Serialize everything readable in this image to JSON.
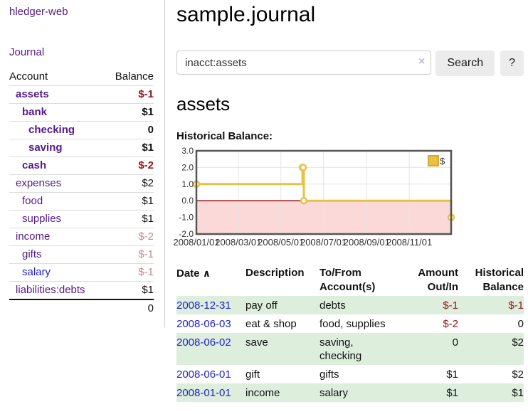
{
  "app": {
    "brand": "hledger-web",
    "nav": {
      "journal": "Journal"
    }
  },
  "sidebar": {
    "header": {
      "account": "Account",
      "balance": "Balance"
    },
    "accounts": [
      {
        "name": "assets",
        "depth": 1,
        "balance": "$-1",
        "in_account": true
      },
      {
        "name": "bank",
        "depth": 2,
        "balance": "$1",
        "in_account": true
      },
      {
        "name": "checking",
        "depth": 3,
        "balance": "0",
        "in_account": true
      },
      {
        "name": "saving",
        "depth": 3,
        "balance": "$1",
        "in_account": true
      },
      {
        "name": "cash",
        "depth": 2,
        "balance": "$-2",
        "in_account": true
      },
      {
        "name": "expenses",
        "depth": 1,
        "balance": "$2",
        "in_account": false
      },
      {
        "name": "food",
        "depth": 2,
        "balance": "$1",
        "in_account": false
      },
      {
        "name": "supplies",
        "depth": 2,
        "balance": "$1",
        "in_account": false
      },
      {
        "name": "income",
        "depth": 1,
        "balance": "$-2",
        "in_account": false
      },
      {
        "name": "gifts",
        "depth": 2,
        "balance": "$-1",
        "in_account": false
      },
      {
        "name": "salary",
        "depth": 2,
        "balance": "$-1",
        "in_account": false,
        "visited": false
      },
      {
        "name": "liabilities:debts",
        "depth": 1,
        "balance": "$1",
        "in_account": false
      }
    ],
    "total": "0"
  },
  "main": {
    "title": "sample.journal",
    "search": {
      "value": "inacct:assets",
      "clear_icon": "×",
      "search_button": "Search",
      "help_button": "?"
    },
    "account_heading": "assets",
    "section_label": "Historical Balance:"
  },
  "chart_data": {
    "type": "line",
    "title": "Historical Balance",
    "series": [
      {
        "name": "$",
        "color": "#e8c240",
        "step": true,
        "points": [
          [
            "2008-01-01",
            1
          ],
          [
            "2008-06-01",
            2
          ],
          [
            "2008-06-02",
            2
          ],
          [
            "2008-06-03",
            0
          ],
          [
            "2008-12-31",
            -1
          ]
        ]
      }
    ],
    "x_range": [
      "2008-01-01",
      "2008-12-31"
    ],
    "x_ticks": [
      "2008/01/01",
      "2008/03/01",
      "2008/05/01",
      "2008/07/01",
      "2008/09/01",
      "2008/11/01"
    ],
    "y_ticks": [
      3.0,
      2.0,
      1.0,
      0.0,
      -1.0,
      -2.0
    ],
    "ylim": [
      -2,
      3
    ],
    "legend": {
      "label": "$",
      "position": "top-right"
    },
    "negative_region_shaded": true,
    "grid": true
  },
  "table": {
    "headers": {
      "date": "Date",
      "sort_icon": "∧",
      "description": "Description",
      "accounts_line1": "To/From",
      "accounts_line2": "Account(s)",
      "amount_line1": "Amount",
      "amount_line2": "Out/In",
      "balance_line1": "Historical",
      "balance_line2": "Balance"
    },
    "rows": [
      {
        "date": "2008-12-31",
        "description": "pay off",
        "accounts": "debts",
        "amount": "$-1",
        "balance": "$-1",
        "shaded": true
      },
      {
        "date": "2008-06-03",
        "description": "eat & shop",
        "accounts": "food, supplies",
        "amount": "$-2",
        "balance": "0",
        "shaded": false
      },
      {
        "date": "2008-06-02",
        "description": "save",
        "accounts": "saving, checking",
        "amount": "0",
        "balance": "$2",
        "shaded": true
      },
      {
        "date": "2008-06-01",
        "description": "gift",
        "accounts": "gifts",
        "amount": "$1",
        "balance": "$2",
        "shaded": false
      },
      {
        "date": "2008-01-01",
        "description": "income",
        "accounts": "salary",
        "amount": "$1",
        "balance": "$1",
        "shaded": true
      }
    ]
  },
  "colors": {
    "link_visited": "#551a8b",
    "link_unvisited": "#2222cc",
    "negative_strong": "#941616",
    "negative_soft": "#c48a8a",
    "row_stripe_green": "#ddeedd",
    "chart_series_gold": "#e8c240",
    "chart_negative_pink": "#fbd9d9",
    "chart_zero_line_red": "#8b0000",
    "button_gray": "#ececec"
  }
}
